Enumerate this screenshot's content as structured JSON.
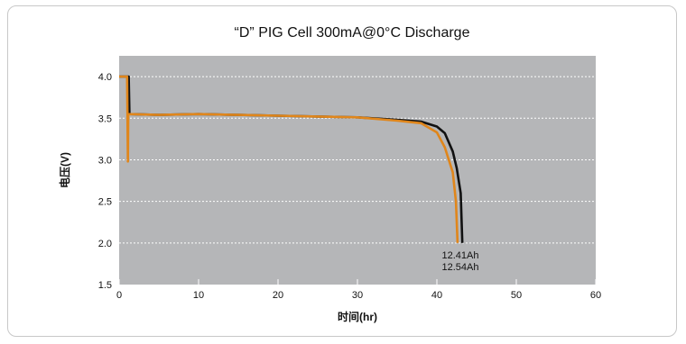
{
  "chart_data": {
    "type": "line",
    "title": "“D” PIG Cell 300mA@0°C Discharge",
    "xlabel": "时间(hr)",
    "ylabel": "电压(V)",
    "xlim": [
      0,
      60
    ],
    "ylim": [
      1.5,
      4.25
    ],
    "xticks": [
      "0",
      "10",
      "20",
      "30",
      "40",
      "50",
      "60"
    ],
    "yticks": [
      "1.5",
      "2.0",
      "2.5",
      "3.0",
      "3.5",
      "4.0"
    ],
    "grid": "horizontal dotted",
    "background": "#b5b6b8",
    "series": [
      {
        "name": "",
        "color": "#111111",
        "points": [
          [
            0,
            4.0
          ],
          [
            1.2,
            4.0
          ],
          [
            1.3,
            3.55
          ],
          [
            5,
            3.54
          ],
          [
            10,
            3.55
          ],
          [
            15,
            3.54
          ],
          [
            20,
            3.53
          ],
          [
            25,
            3.52
          ],
          [
            30,
            3.51
          ],
          [
            35,
            3.48
          ],
          [
            38,
            3.46
          ],
          [
            40,
            3.4
          ],
          [
            41,
            3.32
          ],
          [
            42,
            3.1
          ],
          [
            42.5,
            2.9
          ],
          [
            43,
            2.6
          ],
          [
            43.2,
            2.0
          ]
        ]
      },
      {
        "name": "",
        "color": "#e0861b",
        "points": [
          [
            0,
            4.0
          ],
          [
            1.0,
            4.0
          ],
          [
            1.1,
            2.98
          ],
          [
            1.15,
            3.55
          ],
          [
            5,
            3.54
          ],
          [
            10,
            3.55
          ],
          [
            15,
            3.54
          ],
          [
            20,
            3.53
          ],
          [
            25,
            3.52
          ],
          [
            30,
            3.51
          ],
          [
            35,
            3.47
          ],
          [
            38,
            3.44
          ],
          [
            40,
            3.33
          ],
          [
            41,
            3.15
          ],
          [
            42,
            2.85
          ],
          [
            42.4,
            2.5
          ],
          [
            42.6,
            2.0
          ]
        ]
      }
    ],
    "annotations": [
      "12.41Ah",
      "12.54Ah"
    ]
  }
}
